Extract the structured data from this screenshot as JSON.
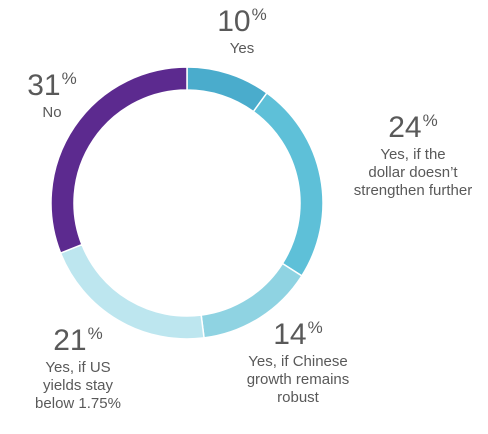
{
  "chart_data": {
    "type": "pie",
    "title": "",
    "series": [
      {
        "category": "Yes",
        "value": 10,
        "percent_label": "10",
        "color": "#4aaccc"
      },
      {
        "category": "Yes, if the dollar doesn't strengthen further",
        "value": 24,
        "percent_label": "24",
        "color": "#5ec0d8"
      },
      {
        "category": "Yes, if Chinese growth remains robust",
        "value": 14,
        "percent_label": "14",
        "color": "#8fd3e2"
      },
      {
        "category": "Yes, if US yields stay below 1.75%",
        "value": 21,
        "percent_label": "21",
        "color": "#bde6ef"
      },
      {
        "category": "No",
        "value": 31,
        "percent_label": "31",
        "color": "#5c2a8f"
      }
    ],
    "labels": [
      {
        "pct": "10",
        "lines": [
          "Yes"
        ]
      },
      {
        "pct": "24",
        "lines": [
          "Yes, if the",
          "dollar doesn’t",
          "strengthen further"
        ]
      },
      {
        "pct": "14",
        "lines": [
          "Yes, if Chinese",
          "growth remains",
          "robust"
        ]
      },
      {
        "pct": "21",
        "lines": [
          "Yes, if US",
          "yields stay",
          "below 1.75%"
        ]
      },
      {
        "pct": "31",
        "lines": [
          "No"
        ]
      }
    ],
    "percent_symbol": "%",
    "donut": true,
    "legend": "none"
  }
}
